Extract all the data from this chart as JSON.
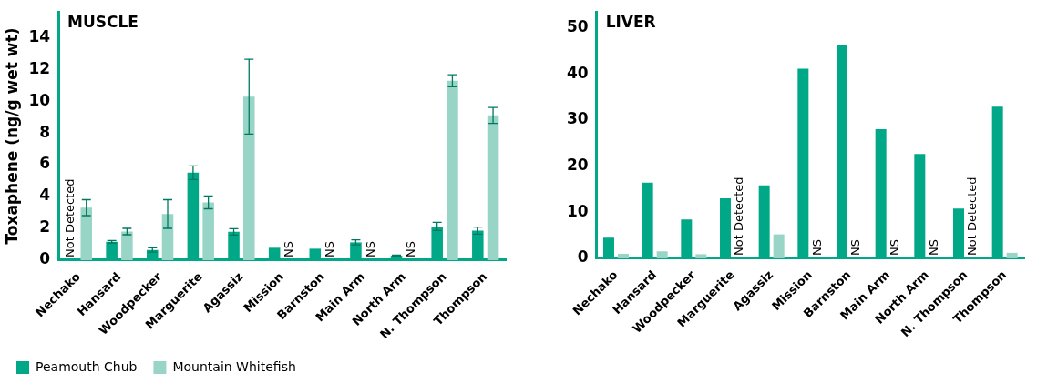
{
  "chart_data": [
    {
      "type": "bar",
      "title": "MUSCLE",
      "ylabel": "Toxaphene (ng/g wet wt)",
      "categories": [
        "Nechako",
        "Hansard",
        "Woodpecker",
        "Marguerite",
        "Agassiz",
        "Mission",
        "Barnston",
        "Main Arm",
        "North Arm",
        "N. Thompson",
        "Thompson"
      ],
      "series": [
        {
          "name": "Peamouth Chub",
          "color": "#00a887",
          "values": [
            null,
            1.16,
            0.64,
            5.5,
            1.78,
            0.78,
            0.72,
            1.12,
            0.28,
            2.12,
            1.86
          ],
          "errors": [
            null,
            0.08,
            0.14,
            0.43,
            0.2,
            null,
            null,
            0.16,
            0.04,
            0.26,
            0.22
          ]
        },
        {
          "name": "Mountain Whitefish",
          "color": "#99d5c6",
          "values": [
            3.3,
            1.8,
            2.9,
            3.63,
            10.28,
            null,
            null,
            null,
            null,
            11.28,
            9.1
          ],
          "errors": [
            0.5,
            0.2,
            0.9,
            0.4,
            2.35,
            null,
            null,
            null,
            null,
            0.38,
            0.5
          ]
        }
      ],
      "annotations": [
        {
          "text": "Not Detected",
          "x": "Nechako",
          "y": 0
        },
        {
          "text": "NS",
          "x": "Mission",
          "y": 0
        },
        {
          "text": "NS",
          "x": "Barnston",
          "y": 0
        },
        {
          "text": "NS",
          "x": "Main Arm",
          "y": 0
        },
        {
          "text": "NS",
          "x": "North Arm",
          "y": 0
        }
      ],
      "ylim": [
        0,
        15.6
      ],
      "yticks": [
        0,
        2,
        4,
        6,
        8,
        10,
        12,
        14
      ],
      "grid": false,
      "legend": "bottom left"
    },
    {
      "type": "bar",
      "title": "LIVER",
      "categories": [
        "Nechako",
        "Hansard",
        "Woodpecker",
        "Marguerite",
        "Agassiz",
        "Mission",
        "Barnston",
        "Main Arm",
        "North Arm",
        "N. Thompson",
        "Thompson"
      ],
      "series": [
        {
          "color": "#00a887",
          "values": [
            4.5,
            16.4,
            8.4,
            13.0,
            15.8,
            41.1,
            46.2,
            28.0,
            22.6,
            10.8,
            32.9
          ]
        },
        {
          "color": "#99d5c6",
          "values": [
            1.0,
            1.5,
            0.9,
            null,
            5.2,
            null,
            null,
            null,
            null,
            null,
            1.2
          ]
        }
      ],
      "annotations": [
        {
          "text": "Not Detected",
          "x": "Marguerite",
          "y": 0
        },
        {
          "text": "NS",
          "x": "Mission",
          "y": 0
        },
        {
          "text": "NS",
          "x": "Barnston",
          "y": 0
        },
        {
          "text": "NS",
          "x": "Main Arm",
          "y": 0
        },
        {
          "text": "NS",
          "x": "North Arm",
          "y": 0
        },
        {
          "text": "Not Detected",
          "x": "N. Thompson",
          "y": 0
        }
      ],
      "ylim": [
        0,
        53.4
      ],
      "yticks": [
        0,
        10,
        20,
        30,
        40,
        50
      ],
      "grid": false,
      "legend": false
    }
  ]
}
